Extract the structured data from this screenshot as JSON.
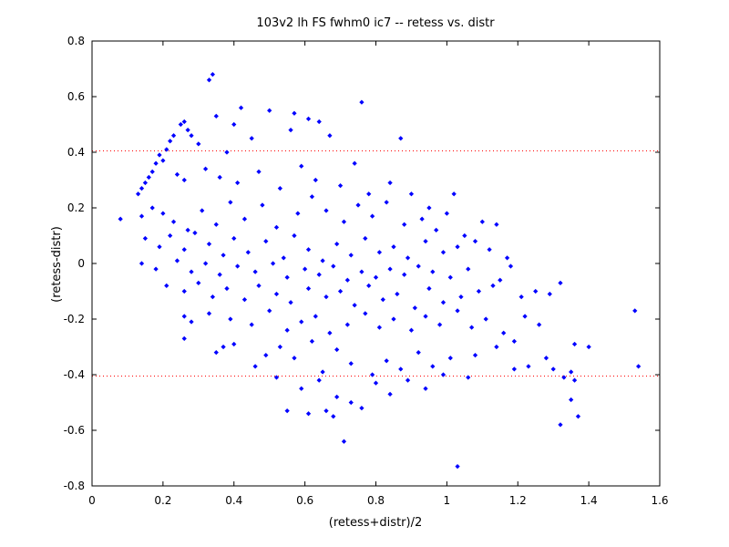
{
  "chart_data": {
    "type": "scatter",
    "title": "103v2 lh FS fwhm0 ic7 -- retess vs. distr",
    "xlabel": "(retess+distr)/2",
    "ylabel": "(retess-distr)",
    "xlim": [
      0,
      1.6
    ],
    "ylim": [
      -0.8,
      0.8
    ],
    "xticks": [
      0,
      0.2,
      0.4,
      0.6,
      0.8,
      1,
      1.2,
      1.4,
      1.6
    ],
    "xtick_labels": [
      "0",
      "0.2",
      "0.4",
      "0.6",
      "0.8",
      "1",
      "1.2",
      "1.4",
      "1.6"
    ],
    "yticks": [
      -0.8,
      -0.6,
      -0.4,
      -0.2,
      0,
      0.2,
      0.4,
      0.6,
      0.8
    ],
    "ytick_labels": [
      "-0.8",
      "-0.6",
      "-0.4",
      "-0.2",
      "0",
      "0.2",
      "0.4",
      "0.6",
      "0.8"
    ],
    "grid": false,
    "legend": "none",
    "marker_color": "#0000ff",
    "reference_line_color": "#ff0000",
    "reference_lines": [
      0.405,
      -0.405
    ],
    "series": [
      {
        "points": [
          [
            0.08,
            0.16
          ],
          [
            0.13,
            0.25
          ],
          [
            0.14,
            0.27
          ],
          [
            0.15,
            0.29
          ],
          [
            0.16,
            0.31
          ],
          [
            0.17,
            0.33
          ],
          [
            0.18,
            0.36
          ],
          [
            0.19,
            0.39
          ],
          [
            0.2,
            0.37
          ],
          [
            0.21,
            0.41
          ],
          [
            0.22,
            0.44
          ],
          [
            0.23,
            0.46
          ],
          [
            0.25,
            0.5
          ],
          [
            0.26,
            0.51
          ],
          [
            0.27,
            0.48
          ],
          [
            0.28,
            0.46
          ],
          [
            0.33,
            0.66
          ],
          [
            0.34,
            0.68
          ],
          [
            0.35,
            0.53
          ],
          [
            0.42,
            0.56
          ],
          [
            0.5,
            0.55
          ],
          [
            0.57,
            0.54
          ],
          [
            0.61,
            0.52
          ],
          [
            0.64,
            0.51
          ],
          [
            0.67,
            0.46
          ],
          [
            0.76,
            0.58
          ],
          [
            0.87,
            0.45
          ],
          [
            0.4,
            0.5
          ],
          [
            0.45,
            0.45
          ],
          [
            0.56,
            0.48
          ],
          [
            0.3,
            0.43
          ],
          [
            0.38,
            0.4
          ],
          [
            0.24,
            0.32
          ],
          [
            0.26,
            0.3
          ],
          [
            0.32,
            0.34
          ],
          [
            0.36,
            0.31
          ],
          [
            0.41,
            0.29
          ],
          [
            0.47,
            0.33
          ],
          [
            0.53,
            0.27
          ],
          [
            0.59,
            0.35
          ],
          [
            0.63,
            0.3
          ],
          [
            0.7,
            0.28
          ],
          [
            0.74,
            0.36
          ],
          [
            0.78,
            0.25
          ],
          [
            0.84,
            0.29
          ],
          [
            0.9,
            0.25
          ],
          [
            0.95,
            0.2
          ],
          [
            1.0,
            0.18
          ],
          [
            1.02,
            0.25
          ],
          [
            0.14,
            0.17
          ],
          [
            0.17,
            0.2
          ],
          [
            0.2,
            0.18
          ],
          [
            0.23,
            0.15
          ],
          [
            0.27,
            0.12
          ],
          [
            0.31,
            0.19
          ],
          [
            0.35,
            0.14
          ],
          [
            0.39,
            0.22
          ],
          [
            0.43,
            0.16
          ],
          [
            0.48,
            0.21
          ],
          [
            0.52,
            0.13
          ],
          [
            0.58,
            0.18
          ],
          [
            0.62,
            0.24
          ],
          [
            0.66,
            0.19
          ],
          [
            0.71,
            0.15
          ],
          [
            0.75,
            0.21
          ],
          [
            0.79,
            0.17
          ],
          [
            0.83,
            0.22
          ],
          [
            0.88,
            0.14
          ],
          [
            0.93,
            0.16
          ],
          [
            0.97,
            0.12
          ],
          [
            1.05,
            0.1
          ],
          [
            1.1,
            0.15
          ],
          [
            1.14,
            0.14
          ],
          [
            1.08,
            0.08
          ],
          [
            0.15,
            0.09
          ],
          [
            0.19,
            0.06
          ],
          [
            0.22,
            0.1
          ],
          [
            0.26,
            0.05
          ],
          [
            0.29,
            0.11
          ],
          [
            0.33,
            0.07
          ],
          [
            0.37,
            0.03
          ],
          [
            0.4,
            0.09
          ],
          [
            0.44,
            0.04
          ],
          [
            0.49,
            0.08
          ],
          [
            0.54,
            0.02
          ],
          [
            0.57,
            0.1
          ],
          [
            0.61,
            0.05
          ],
          [
            0.65,
            0.01
          ],
          [
            0.69,
            0.07
          ],
          [
            0.73,
            0.03
          ],
          [
            0.77,
            0.09
          ],
          [
            0.81,
            0.04
          ],
          [
            0.85,
            0.06
          ],
          [
            0.89,
            0.02
          ],
          [
            0.94,
            0.08
          ],
          [
            0.99,
            0.04
          ],
          [
            1.03,
            0.06
          ],
          [
            1.12,
            0.05
          ],
          [
            1.17,
            0.02
          ],
          [
            0.14,
            0.0
          ],
          [
            0.18,
            -0.02
          ],
          [
            0.24,
            0.01
          ],
          [
            0.28,
            -0.03
          ],
          [
            0.32,
            0.0
          ],
          [
            0.36,
            -0.04
          ],
          [
            0.41,
            -0.01
          ],
          [
            0.46,
            -0.03
          ],
          [
            0.51,
            0.0
          ],
          [
            0.55,
            -0.05
          ],
          [
            0.6,
            -0.02
          ],
          [
            0.64,
            -0.04
          ],
          [
            0.68,
            -0.01
          ],
          [
            0.72,
            -0.06
          ],
          [
            0.76,
            -0.03
          ],
          [
            0.8,
            -0.05
          ],
          [
            0.84,
            -0.02
          ],
          [
            0.88,
            -0.04
          ],
          [
            0.92,
            -0.01
          ],
          [
            0.96,
            -0.03
          ],
          [
            1.01,
            -0.05
          ],
          [
            1.06,
            -0.02
          ],
          [
            1.15,
            -0.06
          ],
          [
            1.18,
            -0.01
          ],
          [
            0.21,
            -0.08
          ],
          [
            0.26,
            -0.1
          ],
          [
            0.3,
            -0.07
          ],
          [
            0.34,
            -0.12
          ],
          [
            0.38,
            -0.09
          ],
          [
            0.43,
            -0.13
          ],
          [
            0.47,
            -0.08
          ],
          [
            0.52,
            -0.11
          ],
          [
            0.56,
            -0.14
          ],
          [
            0.61,
            -0.09
          ],
          [
            0.66,
            -0.12
          ],
          [
            0.7,
            -0.1
          ],
          [
            0.74,
            -0.15
          ],
          [
            0.78,
            -0.08
          ],
          [
            0.82,
            -0.13
          ],
          [
            0.86,
            -0.11
          ],
          [
            0.91,
            -0.16
          ],
          [
            0.95,
            -0.09
          ],
          [
            0.99,
            -0.14
          ],
          [
            1.04,
            -0.12
          ],
          [
            1.09,
            -0.1
          ],
          [
            1.13,
            -0.08
          ],
          [
            1.21,
            -0.12
          ],
          [
            1.25,
            -0.1
          ],
          [
            1.29,
            -0.11
          ],
          [
            1.32,
            -0.07
          ],
          [
            0.26,
            -0.19
          ],
          [
            0.28,
            -0.21
          ],
          [
            0.33,
            -0.18
          ],
          [
            0.39,
            -0.2
          ],
          [
            0.45,
            -0.22
          ],
          [
            0.5,
            -0.17
          ],
          [
            0.55,
            -0.24
          ],
          [
            0.59,
            -0.21
          ],
          [
            0.63,
            -0.19
          ],
          [
            0.67,
            -0.25
          ],
          [
            0.72,
            -0.22
          ],
          [
            0.77,
            -0.18
          ],
          [
            0.81,
            -0.23
          ],
          [
            0.85,
            -0.2
          ],
          [
            0.9,
            -0.24
          ],
          [
            0.94,
            -0.19
          ],
          [
            0.98,
            -0.22
          ],
          [
            1.03,
            -0.17
          ],
          [
            1.07,
            -0.23
          ],
          [
            1.11,
            -0.2
          ],
          [
            1.16,
            -0.25
          ],
          [
            1.22,
            -0.19
          ],
          [
            1.26,
            -0.22
          ],
          [
            0.26,
            -0.27
          ],
          [
            0.35,
            -0.32
          ],
          [
            0.37,
            -0.3
          ],
          [
            0.4,
            -0.29
          ],
          [
            0.46,
            -0.37
          ],
          [
            0.49,
            -0.33
          ],
          [
            0.53,
            -0.3
          ],
          [
            0.57,
            -0.34
          ],
          [
            0.62,
            -0.28
          ],
          [
            0.65,
            -0.39
          ],
          [
            0.69,
            -0.31
          ],
          [
            0.73,
            -0.36
          ],
          [
            0.79,
            -0.4
          ],
          [
            0.83,
            -0.35
          ],
          [
            0.87,
            -0.38
          ],
          [
            0.92,
            -0.32
          ],
          [
            0.96,
            -0.37
          ],
          [
            1.01,
            -0.34
          ],
          [
            1.08,
            -0.33
          ],
          [
            1.14,
            -0.3
          ],
          [
            1.19,
            -0.28
          ],
          [
            1.23,
            -0.37
          ],
          [
            1.28,
            -0.34
          ],
          [
            1.36,
            -0.29
          ],
          [
            1.35,
            -0.39
          ],
          [
            0.52,
            -0.41
          ],
          [
            0.59,
            -0.45
          ],
          [
            0.64,
            -0.42
          ],
          [
            0.66,
            -0.53
          ],
          [
            0.69,
            -0.48
          ],
          [
            0.73,
            -0.5
          ],
          [
            0.8,
            -0.43
          ],
          [
            0.84,
            -0.47
          ],
          [
            0.89,
            -0.42
          ],
          [
            0.94,
            -0.45
          ],
          [
            0.99,
            -0.4
          ],
          [
            1.06,
            -0.41
          ],
          [
            1.19,
            -0.38
          ],
          [
            1.3,
            -0.38
          ],
          [
            1.33,
            -0.41
          ],
          [
            0.55,
            -0.53
          ],
          [
            0.61,
            -0.54
          ],
          [
            0.68,
            -0.55
          ],
          [
            0.71,
            -0.64
          ],
          [
            0.76,
            -0.52
          ],
          [
            1.03,
            -0.73
          ],
          [
            1.32,
            -0.58
          ],
          [
            1.35,
            -0.49
          ],
          [
            1.37,
            -0.55
          ],
          [
            1.53,
            -0.17
          ],
          [
            1.54,
            -0.37
          ],
          [
            1.4,
            -0.3
          ],
          [
            1.36,
            -0.42
          ]
        ]
      }
    ]
  }
}
